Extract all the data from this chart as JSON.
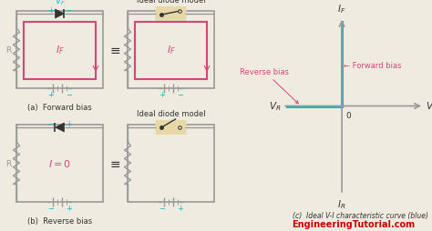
{
  "bg_color": "#f0ebe0",
  "title_color": "#cc0000",
  "website": "EngineeringTutorial.com",
  "pink": "#d4477a",
  "cyan": "#00bcd4",
  "gray": "#999999",
  "dark": "#333333",
  "tan_bg": "#e8d8a8",
  "forward_bias_label": "Forward bias",
  "reverse_bias_label": "Reverse bias",
  "subtitle_c": "(c)  Ideal V-I characteristic curve (blue)",
  "label_a": "(a)  Forward bias",
  "label_b": "(b)  Reverse bias",
  "ideal_model": "Ideal diode model"
}
